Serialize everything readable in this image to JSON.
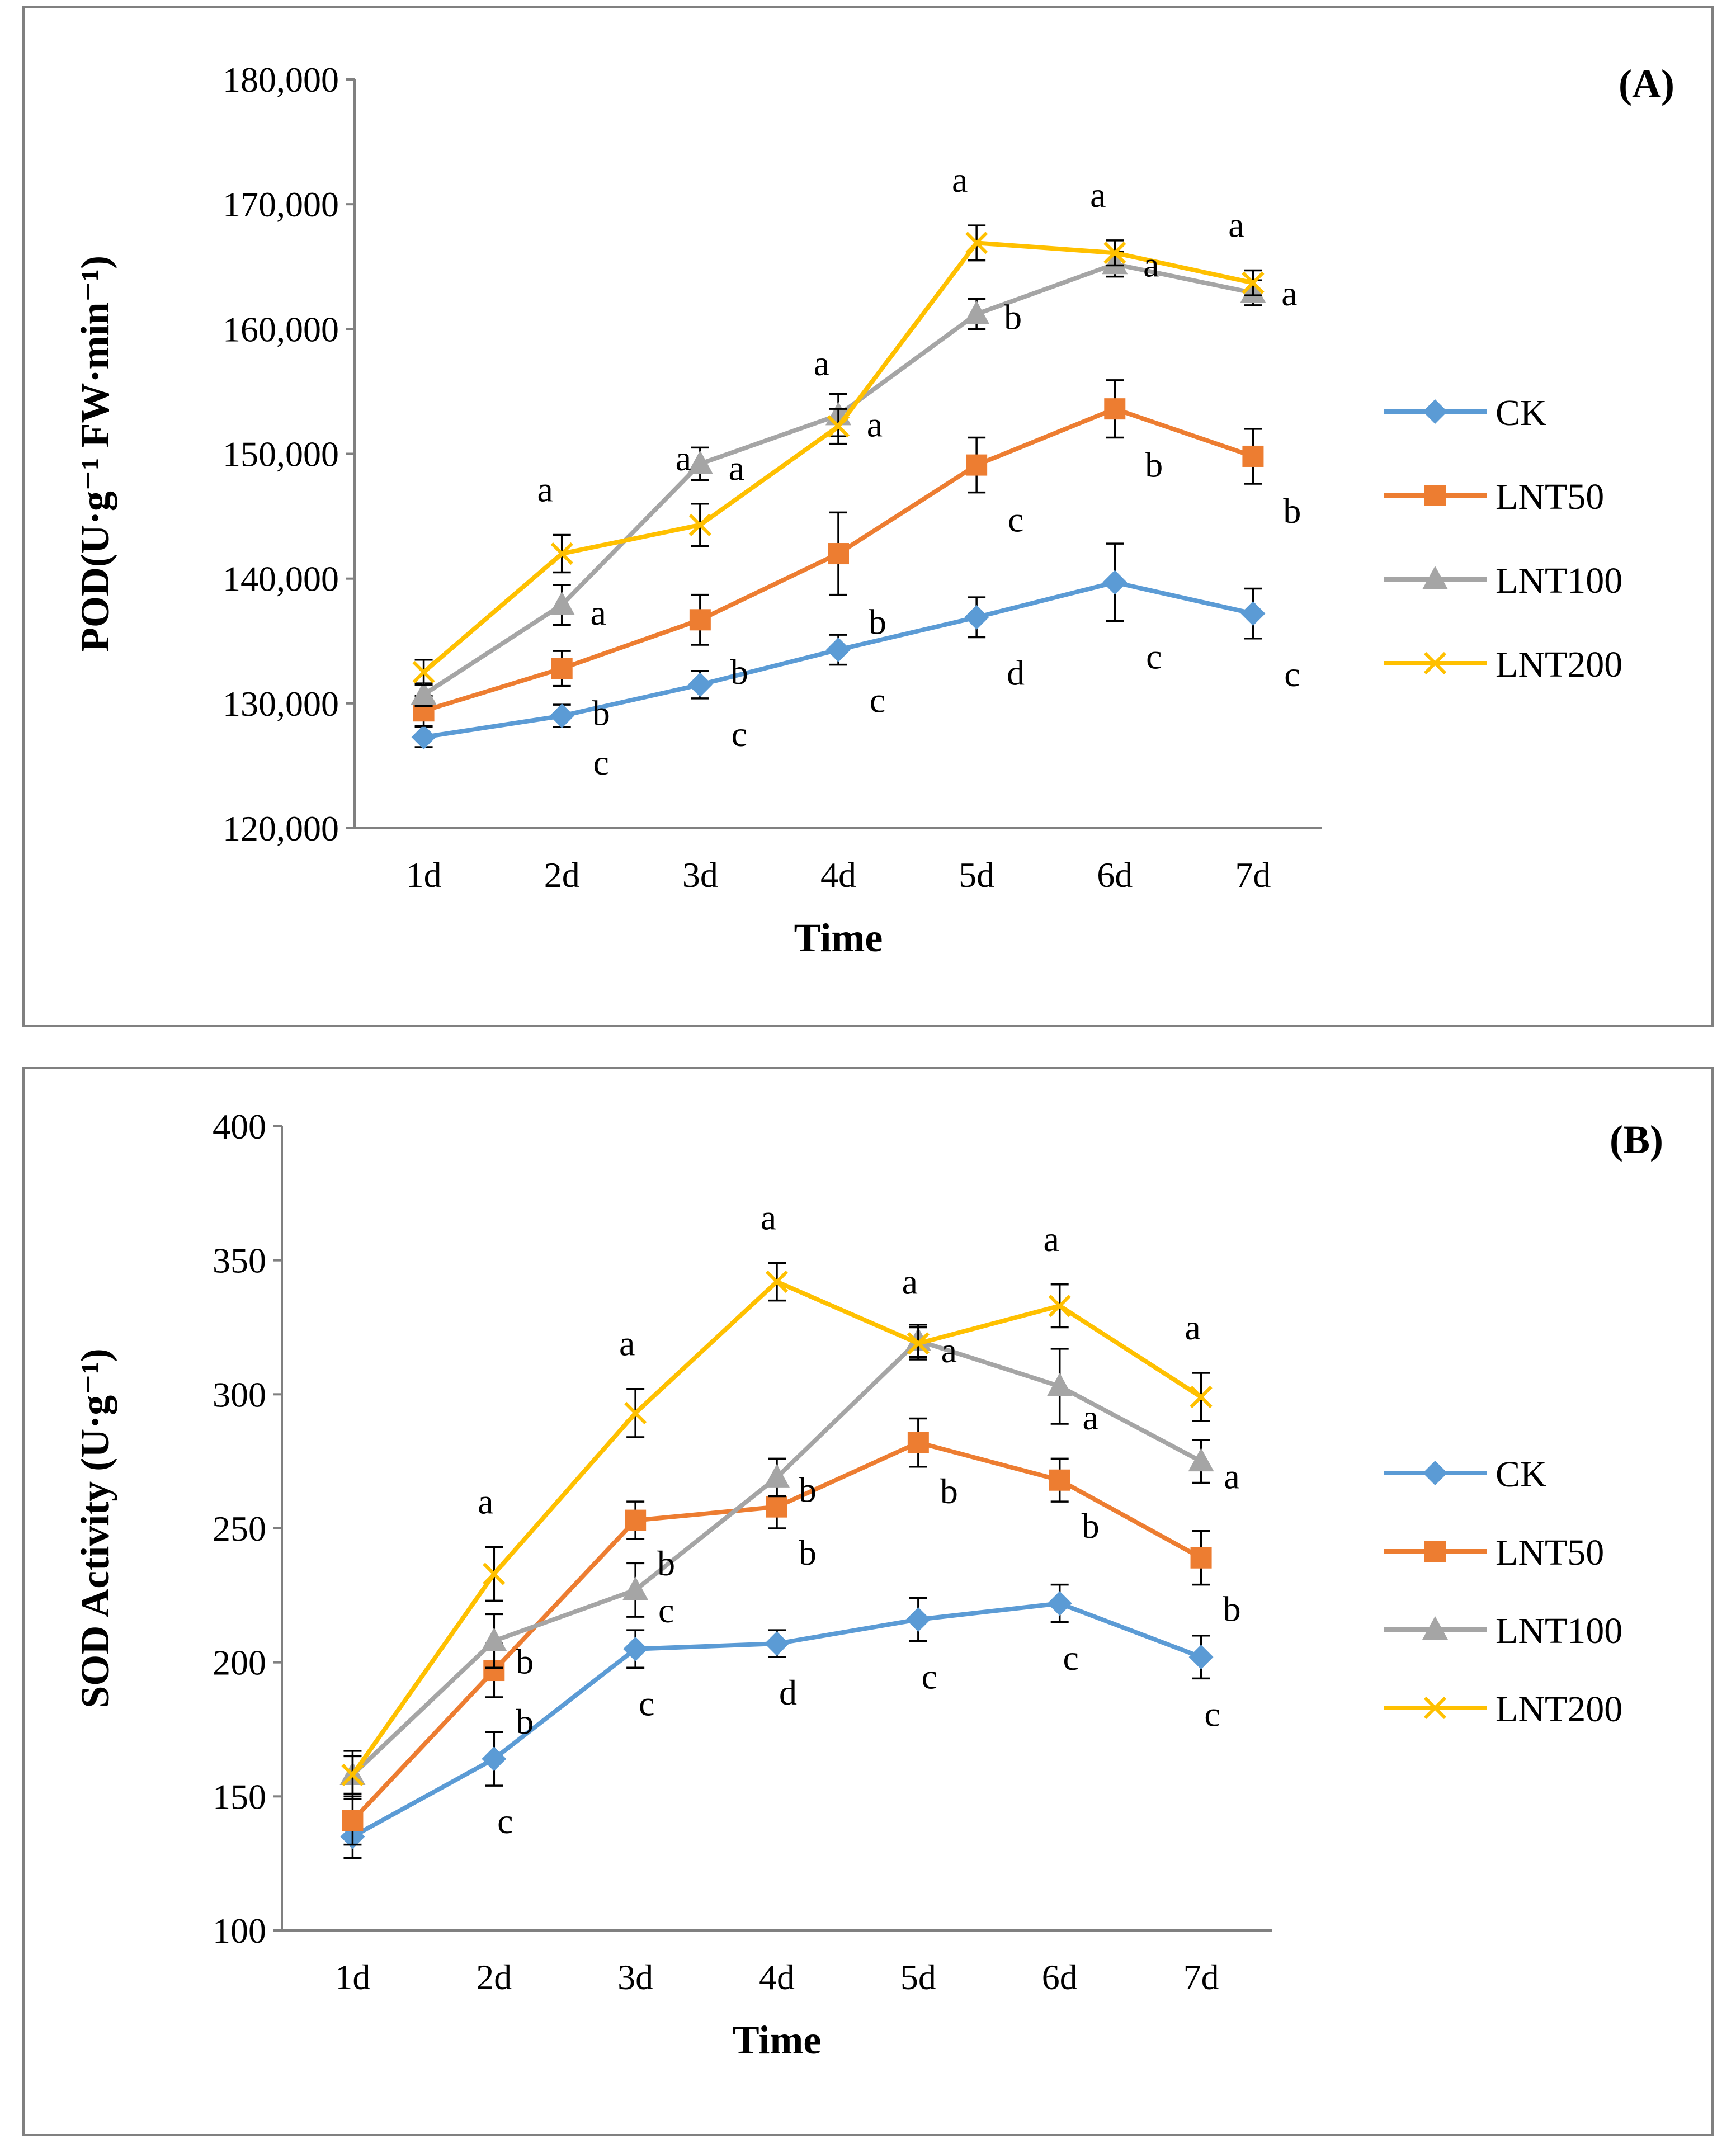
{
  "chart_data": [
    {
      "type": "line",
      "title": "(A)",
      "xlabel": "Time",
      "ylabel": "POD(U·g⁻¹ FW·min⁻¹)",
      "ylim": [
        120000,
        180000
      ],
      "ytick_values": [
        120000,
        130000,
        140000,
        150000,
        160000,
        170000,
        180000
      ],
      "ytick_labels": [
        "120,000",
        "130,000",
        "140,000",
        "150,000",
        "160,000",
        "170,000",
        "180,000"
      ],
      "categories": [
        "1d",
        "2d",
        "3d",
        "4d",
        "5d",
        "6d",
        "7d"
      ],
      "legend_position": "right",
      "series": [
        {
          "name": "CK",
          "color": "#5B9BD5",
          "marker": "diamond",
          "values": [
            127300,
            129000,
            131500,
            134300,
            136900,
            139700,
            137200
          ],
          "errors": [
            800,
            900,
            1100,
            1200,
            1600,
            3100,
            2000
          ],
          "letters": [
            "",
            "c",
            "c",
            "c",
            "d",
            "c",
            "c"
          ]
        },
        {
          "name": "LNT50",
          "color": "#ED7D31",
          "marker": "square",
          "values": [
            129400,
            132800,
            136700,
            142000,
            149100,
            153600,
            149800
          ],
          "errors": [
            1200,
            1400,
            2000,
            3300,
            2200,
            2300,
            2200
          ],
          "letters": [
            "",
            "b",
            "b",
            "b",
            "c",
            "b",
            "b"
          ]
        },
        {
          "name": "LNT100",
          "color": "#A5A5A5",
          "marker": "triangle",
          "values": [
            130700,
            137900,
            149200,
            153100,
            161200,
            165200,
            162900
          ],
          "errors": [
            900,
            1600,
            1300,
            1700,
            1200,
            1000,
            1000
          ],
          "letters": [
            "",
            "a",
            "a",
            "a",
            "b",
            "a",
            "a"
          ]
        },
        {
          "name": "LNT200",
          "color": "#FFC000",
          "marker": "x",
          "values": [
            132500,
            142000,
            144300,
            152200,
            166900,
            166100,
            163700
          ],
          "errors": [
            1000,
            1500,
            1700,
            1400,
            1400,
            1000,
            1000
          ],
          "letters": [
            "",
            "a",
            "a",
            "a",
            "a",
            "a",
            "a"
          ]
        }
      ]
    },
    {
      "type": "line",
      "title": "(B)",
      "xlabel": "Time",
      "ylabel": "SOD Activity (U·g⁻¹)",
      "ylim": [
        100,
        400
      ],
      "ytick_values": [
        100,
        150,
        200,
        250,
        300,
        350,
        400
      ],
      "ytick_labels": [
        "100",
        "150",
        "200",
        "250",
        "300",
        "350",
        "400"
      ],
      "categories": [
        "1d",
        "2d",
        "3d",
        "4d",
        "5d",
        "6d",
        "7d"
      ],
      "legend_position": "right",
      "series": [
        {
          "name": "CK",
          "color": "#5B9BD5",
          "marker": "diamond",
          "values": [
            135,
            164,
            205,
            207,
            216,
            222,
            202
          ],
          "errors": [
            8,
            10,
            7,
            5,
            8,
            7,
            8
          ],
          "letters": [
            "",
            "c",
            "c",
            "d",
            "c",
            "c",
            "c"
          ]
        },
        {
          "name": "LNT50",
          "color": "#ED7D31",
          "marker": "square",
          "values": [
            141,
            197,
            253,
            258,
            282,
            268,
            239
          ],
          "errors": [
            9,
            10,
            7,
            8,
            9,
            8,
            10
          ],
          "letters": [
            "",
            "b",
            "b",
            "b",
            "b",
            "b",
            "b"
          ]
        },
        {
          "name": "LNT100",
          "color": "#A5A5A5",
          "marker": "triangle",
          "values": [
            158,
            208,
            227,
            269,
            320,
            303,
            275
          ],
          "errors": [
            7,
            10,
            10,
            7,
            6,
            14,
            8
          ],
          "letters": [
            "",
            "b",
            "c",
            "b",
            "a",
            "a",
            "a"
          ]
        },
        {
          "name": "LNT200",
          "color": "#FFC000",
          "marker": "x",
          "values": [
            158,
            233,
            293,
            342,
            319,
            333,
            299
          ],
          "errors": [
            9,
            10,
            9,
            7,
            6,
            8,
            9
          ],
          "letters": [
            "",
            "a",
            "a",
            "a",
            "a",
            "a",
            "a"
          ]
        }
      ]
    }
  ]
}
